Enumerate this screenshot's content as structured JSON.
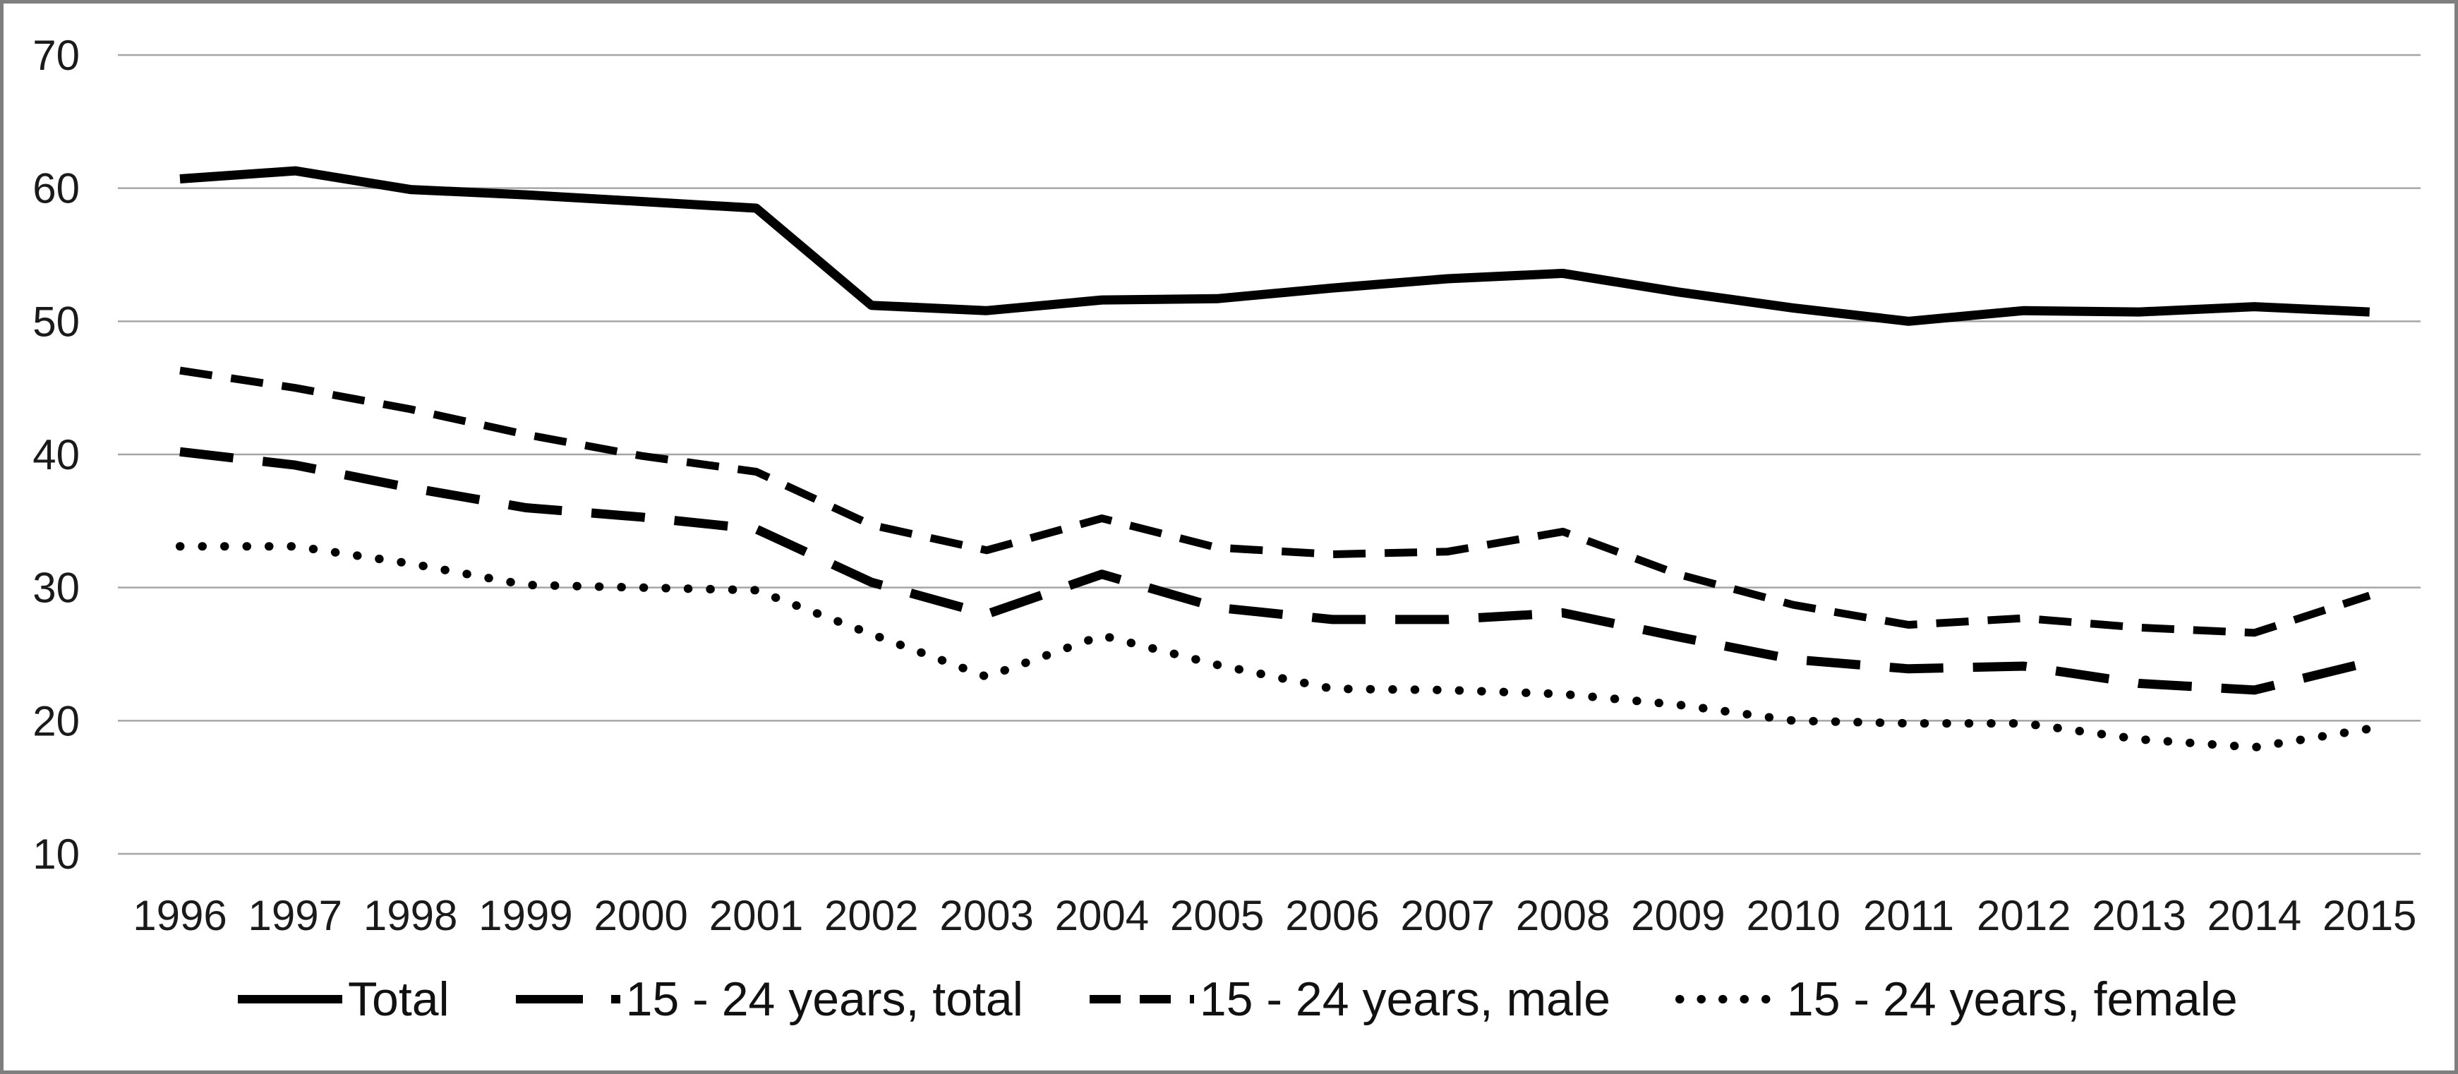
{
  "chart_data": {
    "type": "line",
    "title": "",
    "xlabel": "",
    "ylabel": "",
    "x": [
      1996,
      1997,
      1998,
      1999,
      2000,
      2001,
      2002,
      2003,
      2004,
      2005,
      2006,
      2007,
      2008,
      2009,
      2010,
      2011,
      2012,
      2013,
      2014,
      2015
    ],
    "series": [
      {
        "name": "Total",
        "style": "solid",
        "values": [
          60.7,
          61.3,
          59.9,
          59.5,
          59.0,
          58.5,
          51.2,
          50.8,
          51.6,
          51.7,
          52.5,
          53.2,
          53.6,
          52.2,
          51.0,
          50.0,
          50.8,
          50.7,
          51.1,
          50.7
        ]
      },
      {
        "name": "15 - 24 years, total",
        "style": "long-dash",
        "values": [
          40.2,
          39.2,
          37.5,
          36.0,
          35.3,
          34.4,
          30.4,
          28.0,
          31.0,
          28.5,
          27.6,
          27.6,
          28.1,
          26.3,
          24.6,
          23.9,
          24.1,
          22.8,
          22.3,
          24.4
        ]
      },
      {
        "name": "15 - 24 years, male",
        "style": "short-dash",
        "values": [
          46.3,
          45.0,
          43.4,
          41.5,
          39.9,
          38.7,
          34.7,
          32.8,
          35.2,
          33.0,
          32.5,
          32.7,
          34.2,
          31.0,
          28.7,
          27.2,
          27.7,
          27.0,
          26.6,
          29.4
        ]
      },
      {
        "name": "15 - 24 years, female",
        "style": "dotted",
        "values": [
          33.1,
          33.1,
          31.8,
          30.2,
          30.0,
          29.8,
          26.5,
          23.3,
          26.4,
          24.2,
          22.4,
          22.3,
          22.0,
          21.2,
          20.0,
          19.8,
          19.8,
          18.6,
          18.0,
          19.4
        ]
      }
    ],
    "ylim": [
      10,
      70
    ],
    "yticks": [
      10,
      20,
      30,
      40,
      50,
      60,
      70
    ],
    "grid": true,
    "legend_position": "bottom",
    "line_color": "#000000",
    "grid_color": "#a6a6a6",
    "tick_label_color": "#1a1a1a"
  },
  "legend": {
    "items": [
      {
        "label": "Total"
      },
      {
        "label": "15 - 24 years, total"
      },
      {
        "label": "15 - 24 years, male"
      },
      {
        "label": "15 - 24 years, female"
      }
    ]
  }
}
